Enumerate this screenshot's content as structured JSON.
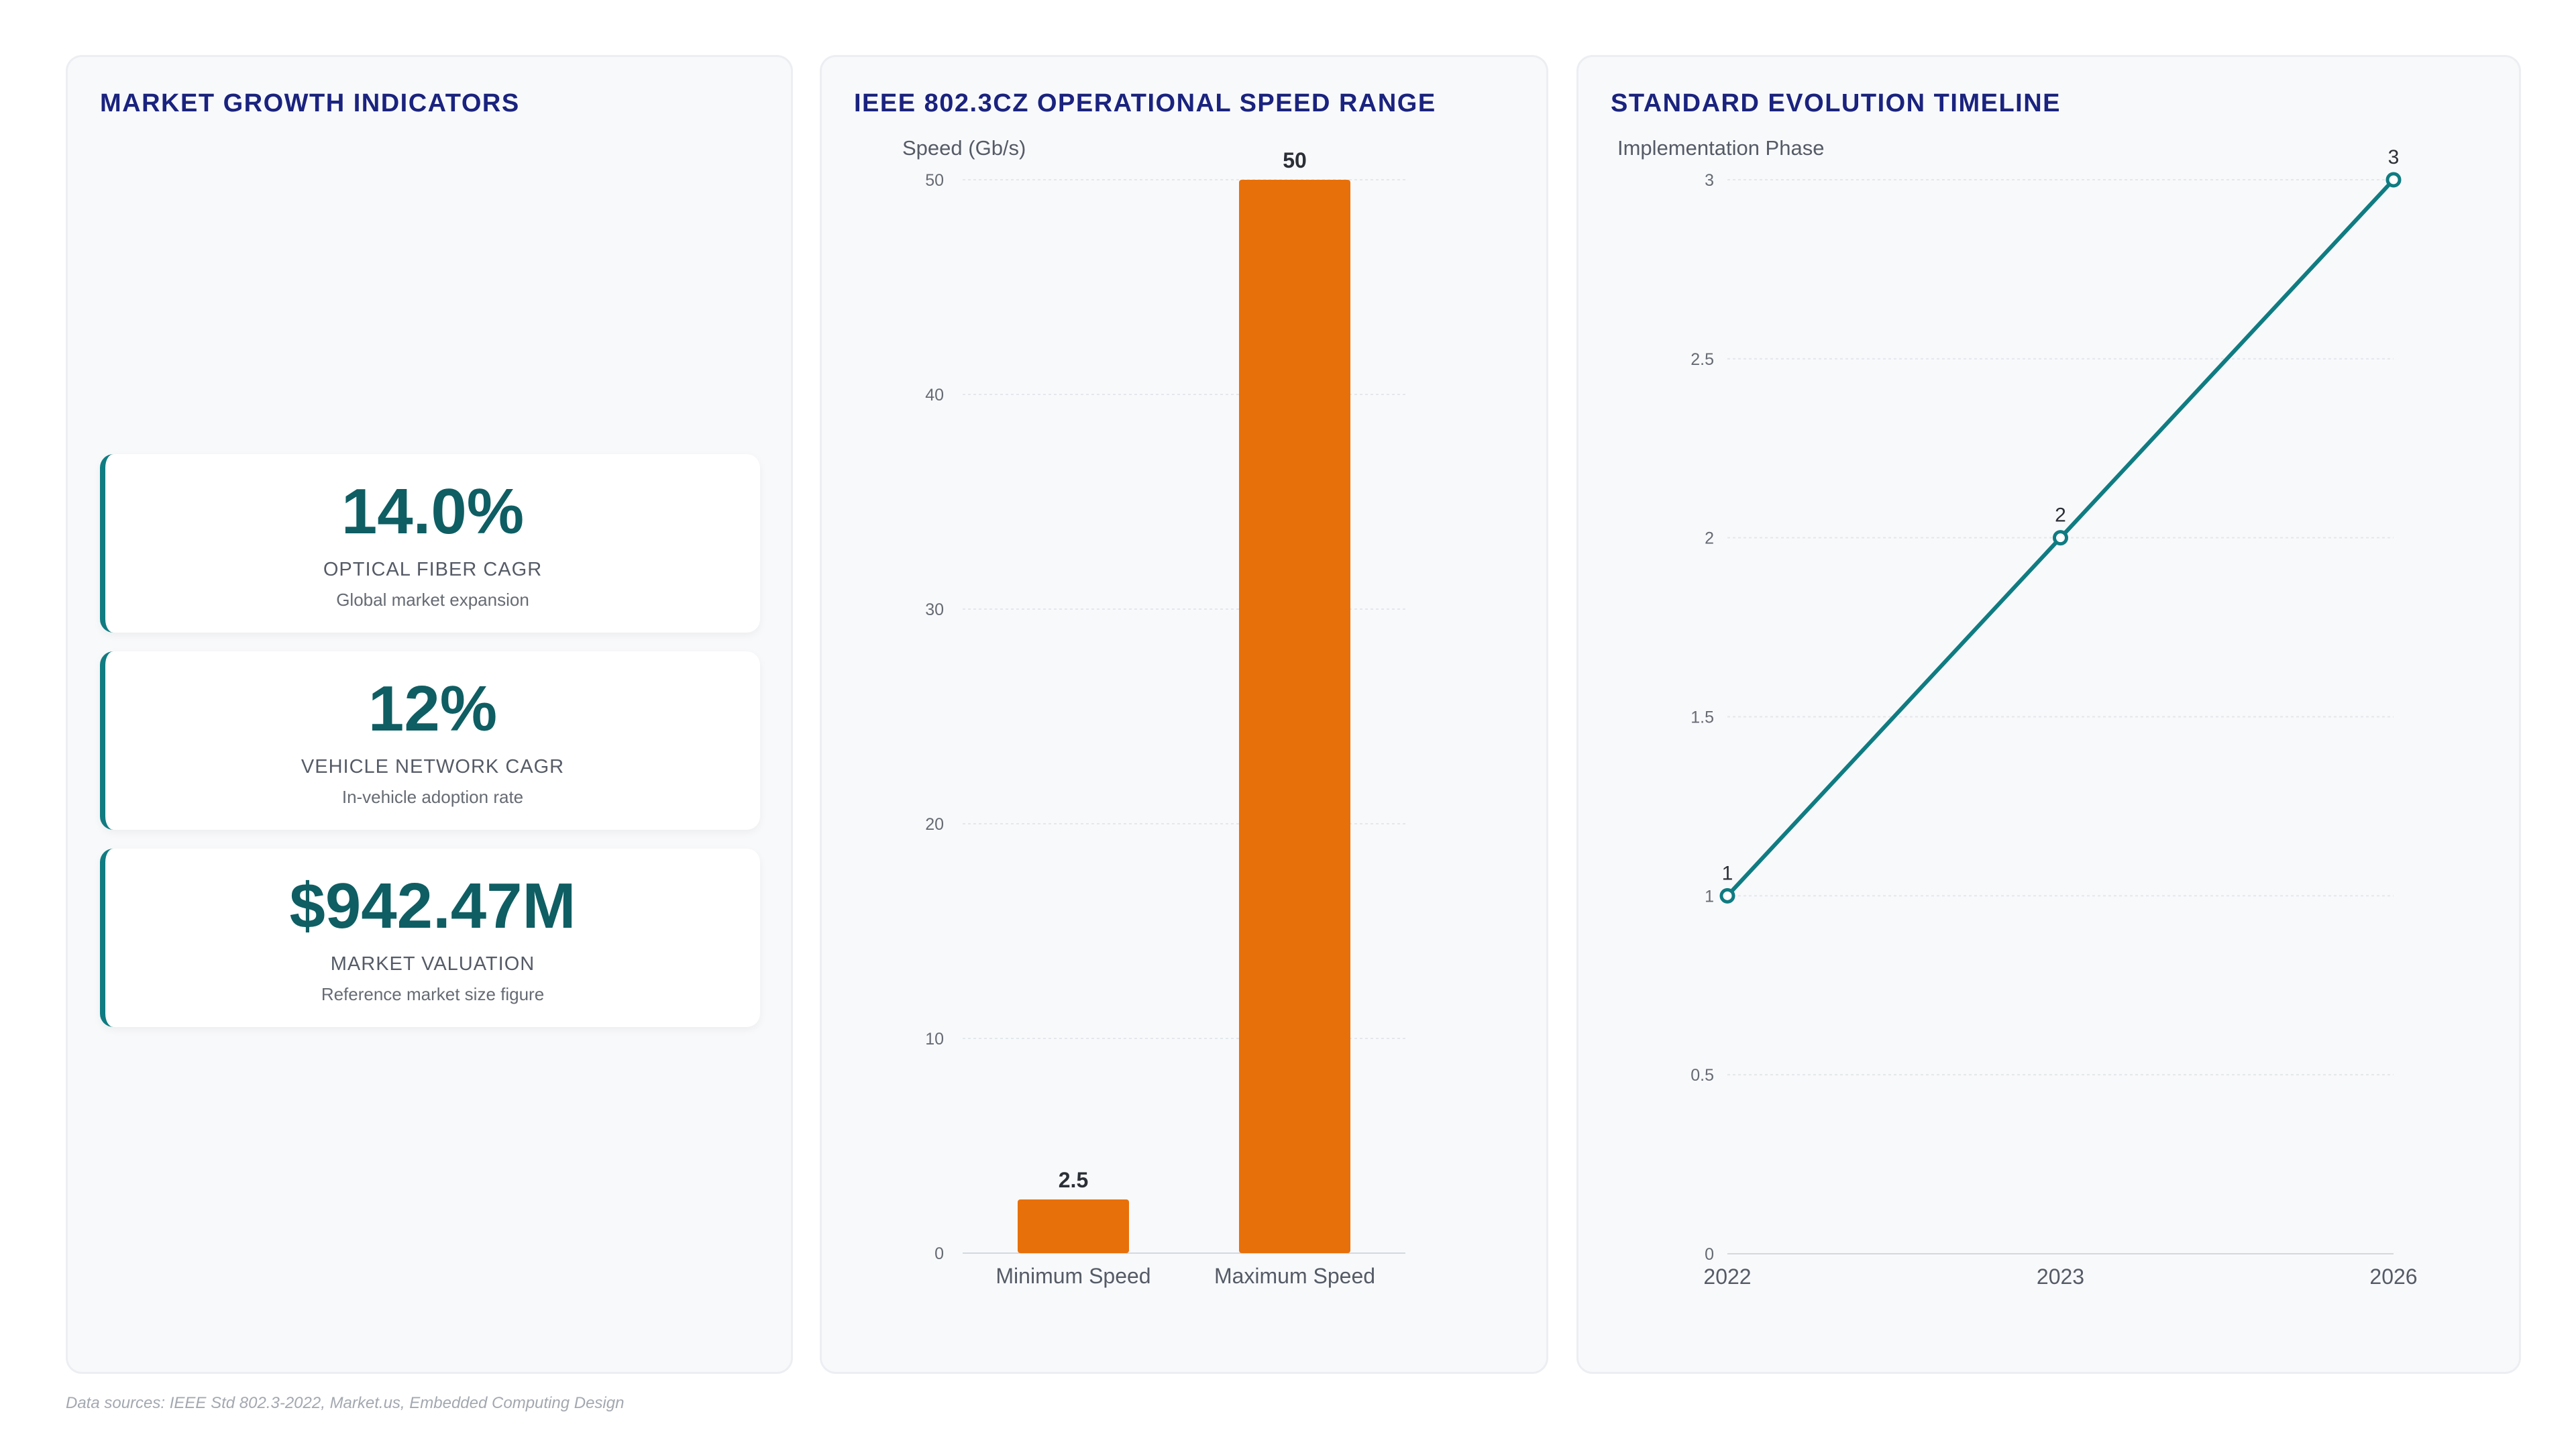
{
  "kpi_panel": {
    "title": "MARKET GROWTH INDICATORS",
    "cards": [
      {
        "value": "14.0%",
        "label": "OPTICAL FIBER CAGR",
        "sub": "Global market expansion"
      },
      {
        "value": "12%",
        "label": "VEHICLE NETWORK CAGR",
        "sub": "In-vehicle adoption rate"
      },
      {
        "value": "$942.47M",
        "label": "MARKET VALUATION",
        "sub": "Reference market size figure"
      }
    ]
  },
  "speed_panel": {
    "title": "IEEE 802.3CZ OPERATIONAL SPEED RANGE"
  },
  "timeline_panel": {
    "title": "STANDARD EVOLUTION TIMELINE"
  },
  "footer": "Data sources: IEEE Std 802.3-2022, Market.us, Embedded Computing Design",
  "colors": {
    "bar": "#e8700a",
    "line": "#0f7c82",
    "title": "#1a237e",
    "kpi_value": "#0e5e63"
  },
  "chart_data": [
    {
      "type": "bar",
      "title": "IEEE 802.3CZ OPERATIONAL SPEED RANGE",
      "ylabel": "Speed (Gb/s)",
      "categories": [
        "Minimum Speed",
        "Maximum Speed"
      ],
      "values": [
        2.5,
        50
      ],
      "data_labels": [
        "2.5",
        "50"
      ],
      "ylim": [
        0,
        50
      ],
      "yticks": [
        0,
        10,
        20,
        30,
        40,
        50
      ],
      "grid": true
    },
    {
      "type": "line",
      "title": "STANDARD EVOLUTION TIMELINE",
      "ylabel": "Implementation Phase",
      "categories": [
        "2022",
        "2023",
        "2026"
      ],
      "values": [
        1,
        2,
        3
      ],
      "data_labels": [
        "1",
        "2",
        "3"
      ],
      "ylim": [
        0,
        3
      ],
      "yticks": [
        0,
        0.5,
        1,
        1.5,
        2,
        2.5,
        3
      ],
      "ytick_labels": [
        "0",
        "0.5",
        "1",
        "1.5",
        "2",
        "2.5",
        "3"
      ],
      "grid": true
    }
  ]
}
